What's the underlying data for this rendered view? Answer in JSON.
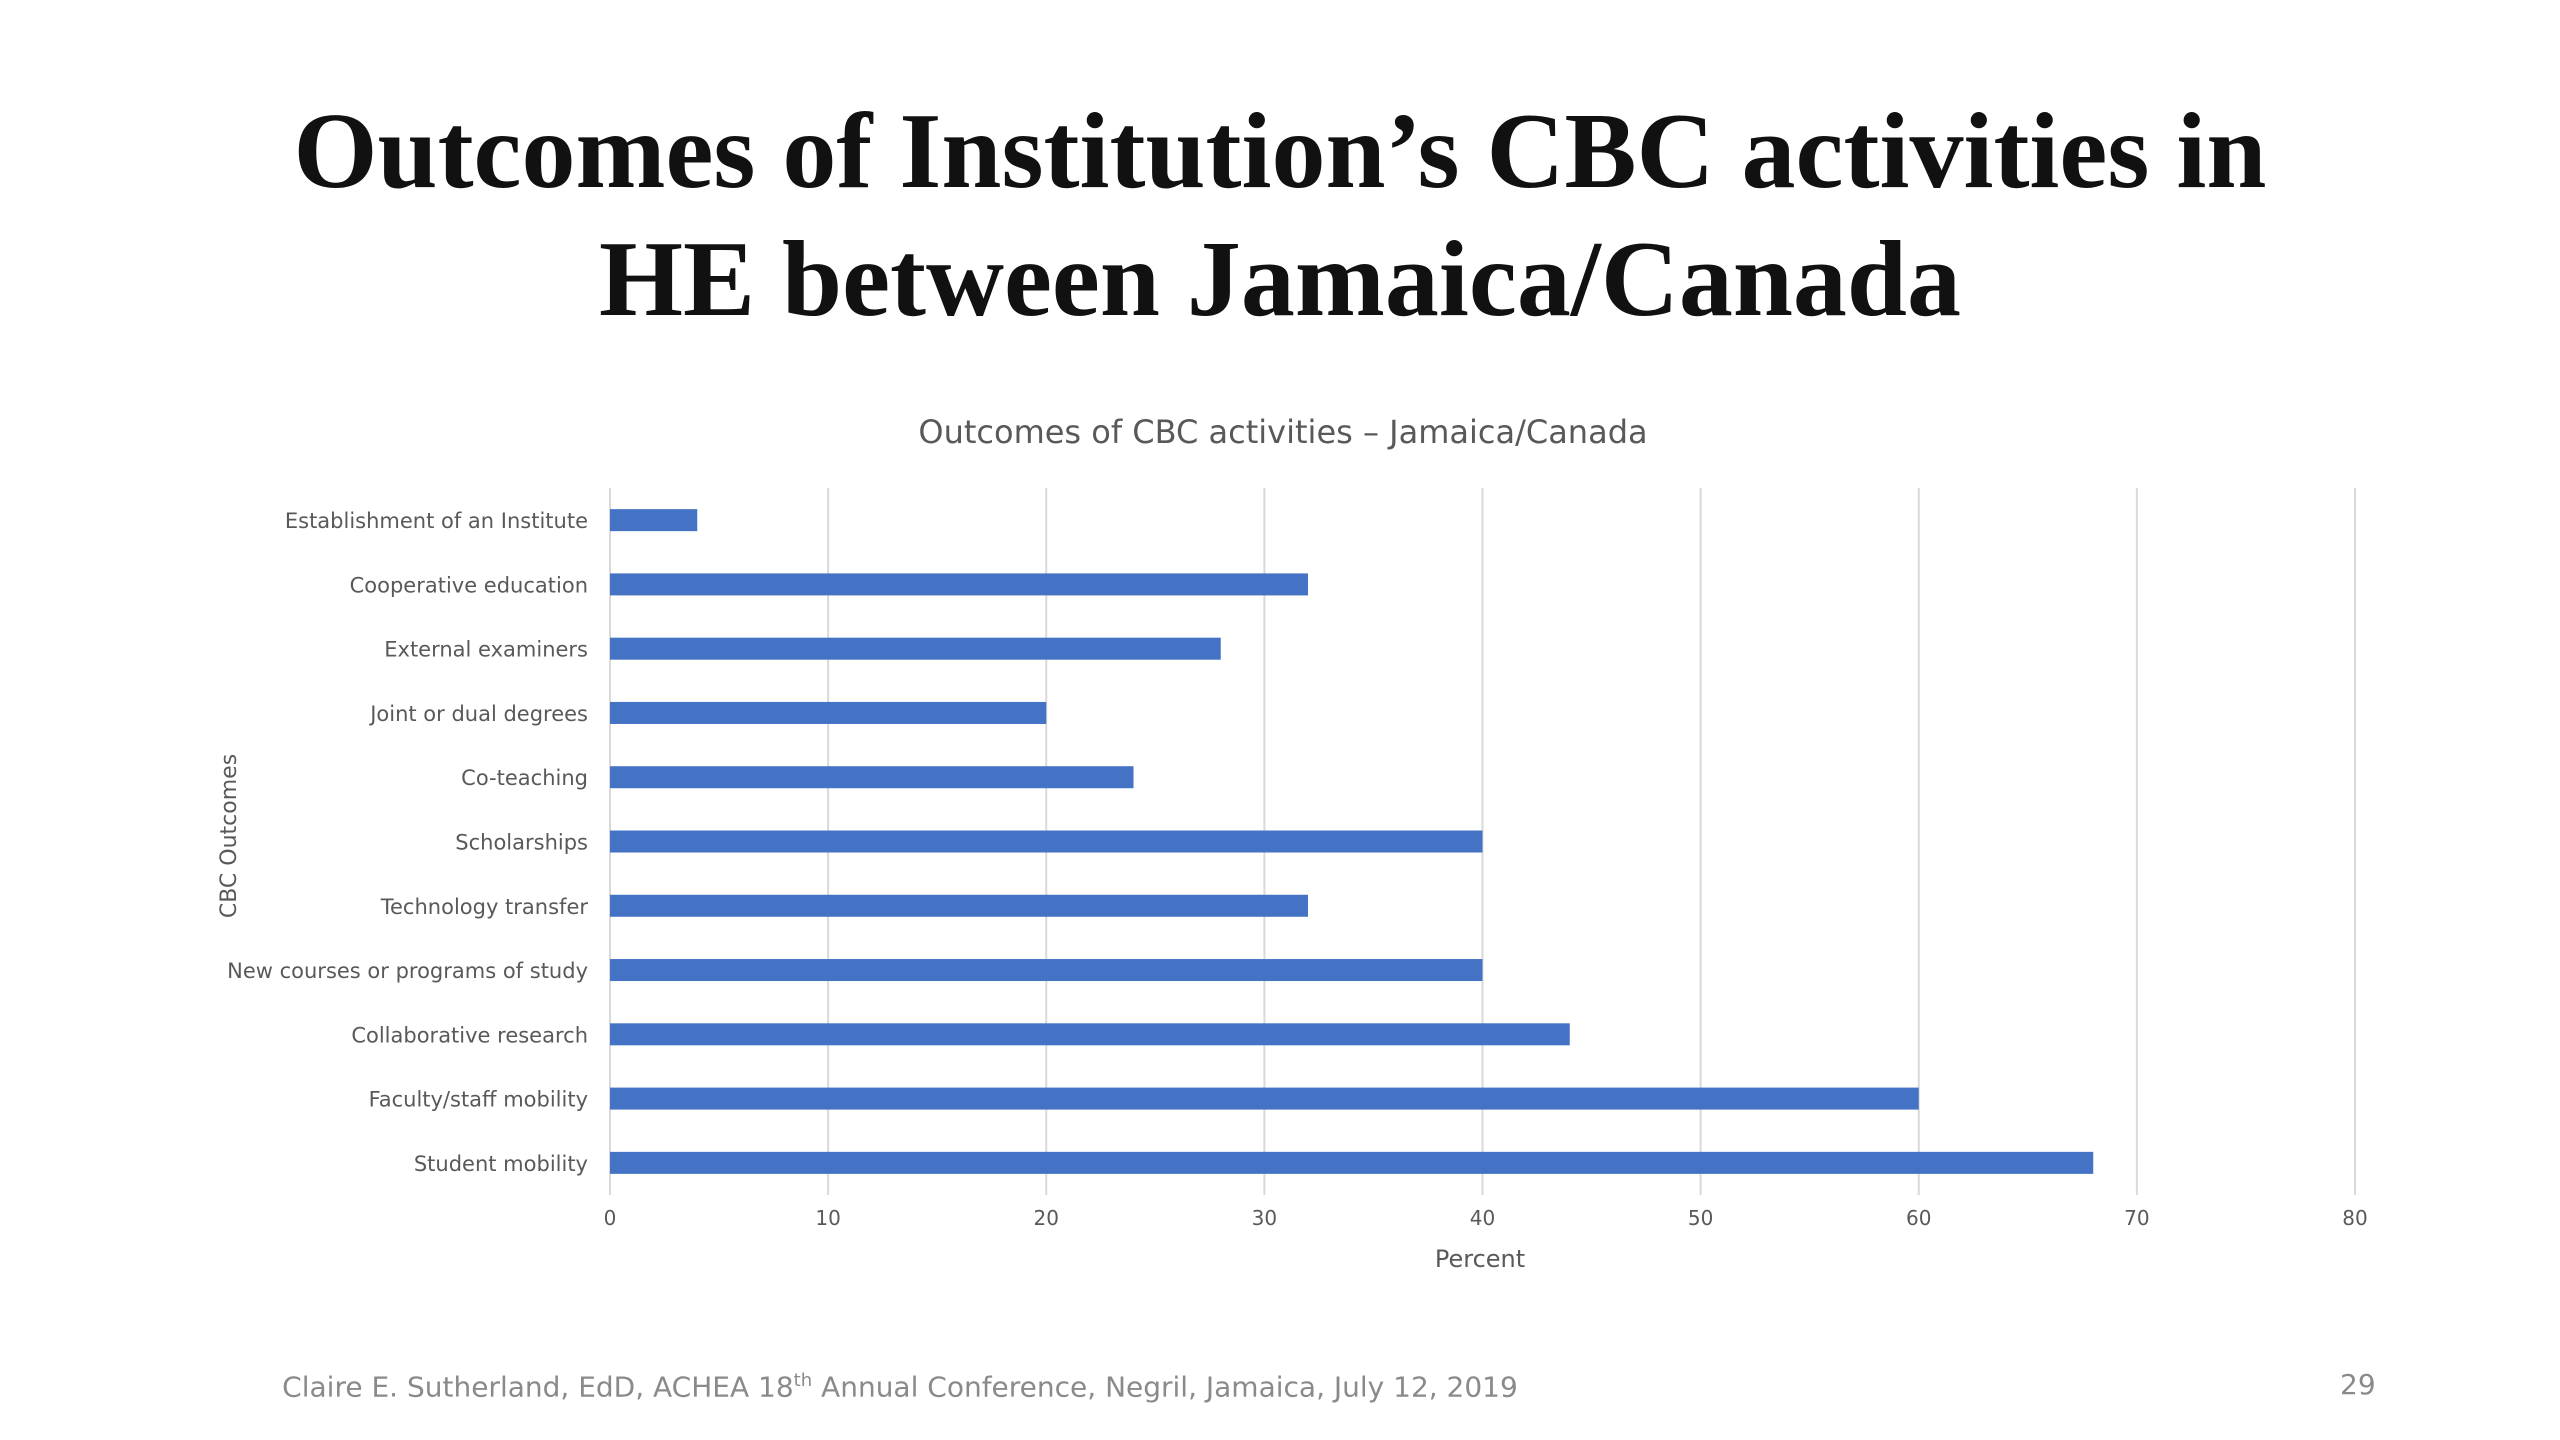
{
  "slide": {
    "title_line1": "Outcomes of  Institution’s CBC activities in",
    "title_line2": "HE between Jamaica/Canada",
    "footer_pre": "Claire E. Sutherland, EdD, ACHEA 18",
    "footer_sup": "th",
    "footer_post": " Annual Conference, Negril, Jamaica, July 12, 2019",
    "page_number": "29"
  },
  "colors": {
    "bar": "#4472c4",
    "grid": "#d9d9d9",
    "text": "#595959"
  },
  "chart_data": {
    "type": "bar",
    "orientation": "horizontal",
    "title": "Outcomes of CBC activities – Jamaica/Canada",
    "xlabel": "Percent",
    "ylabel": "CBC Outcomes",
    "xlim": [
      0,
      80
    ],
    "xticks": [
      "0",
      "10",
      "20",
      "30",
      "40",
      "50",
      "60",
      "70",
      "80"
    ],
    "grid": true,
    "categories": [
      "Establishment of an Institute",
      "Cooperative education",
      "External examiners",
      "Joint or dual degrees",
      "Co-teaching",
      "Scholarships",
      "Technology transfer",
      "New courses or programs of study",
      "Collaborative research",
      "Faculty/staff mobility",
      "Student mobility"
    ],
    "values": [
      4,
      32,
      28,
      20,
      24,
      40,
      32,
      40,
      44,
      60,
      68
    ]
  }
}
